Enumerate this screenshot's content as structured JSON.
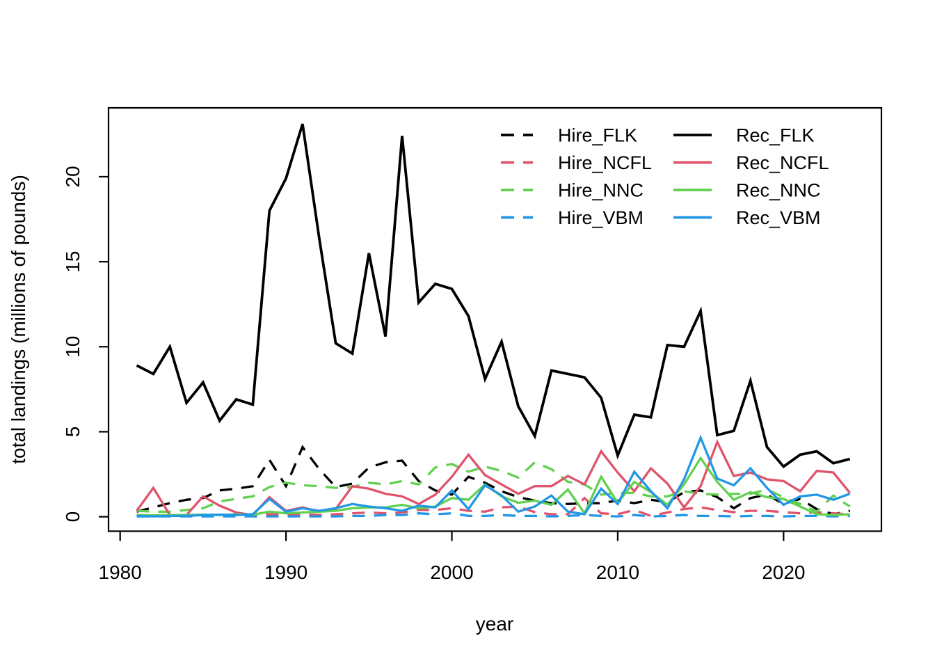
{
  "figure": {
    "background": "#ffffff",
    "frame_color": "#000000"
  },
  "chart_data": {
    "type": "line",
    "title": "",
    "xlabel": "year",
    "ylabel": "total landings (millions of pounds)",
    "x_ticks": [
      1980,
      1990,
      2000,
      2010,
      2020
    ],
    "y_ticks": [
      0,
      5,
      10,
      15,
      20
    ],
    "xlim": [
      1979.3,
      2025.9
    ],
    "ylim": [
      -0.85,
      24.05
    ],
    "grid": false,
    "legend_position": "top-right-inside",
    "x": [
      1981,
      1982,
      1983,
      1984,
      1985,
      1986,
      1987,
      1988,
      1989,
      1990,
      1991,
      1992,
      1993,
      1994,
      1995,
      1996,
      1997,
      1998,
      1999,
      2000,
      2001,
      2002,
      2003,
      2004,
      2005,
      2006,
      2007,
      2008,
      2009,
      2010,
      2011,
      2012,
      2013,
      2014,
      2015,
      2016,
      2017,
      2018,
      2019,
      2020,
      2021,
      2022,
      2023,
      2024
    ],
    "series": [
      {
        "name": "Hire_FLK",
        "color": "#000000",
        "dash": true,
        "values": [
          0.3,
          0.55,
          0.8,
          1.0,
          1.1,
          1.55,
          1.65,
          1.8,
          3.35,
          1.8,
          4.1,
          2.8,
          1.75,
          1.95,
          2.9,
          3.2,
          3.3,
          2.1,
          1.55,
          1.3,
          2.35,
          2.0,
          1.5,
          1.15,
          0.95,
          0.8,
          0.75,
          0.8,
          0.8,
          0.95,
          0.8,
          1.0,
          0.85,
          1.45,
          1.55,
          1.15,
          0.5,
          1.1,
          1.3,
          0.75,
          1.05,
          0.45,
          0.15,
          0.35
        ]
      },
      {
        "name": "Hire_NCFL",
        "color": "#DF536B",
        "dash": true,
        "values": [
          0.05,
          0.05,
          0.05,
          0.05,
          0.08,
          0.1,
          0.1,
          0.1,
          0.15,
          0.1,
          0.15,
          0.1,
          0.15,
          0.2,
          0.25,
          0.2,
          0.25,
          0.4,
          0.4,
          0.5,
          0.35,
          0.3,
          0.55,
          0.6,
          0.27,
          0.15,
          0.15,
          1.1,
          0.2,
          0.15,
          0.4,
          0.05,
          0.25,
          0.45,
          0.55,
          0.4,
          0.27,
          0.35,
          0.35,
          0.27,
          0.2,
          0.27,
          0.2,
          0.15
        ]
      },
      {
        "name": "Hire_NNC",
        "color": "#61D04F",
        "dash": true,
        "values": [
          0.35,
          0.3,
          0.3,
          0.4,
          0.5,
          0.9,
          1.05,
          1.2,
          1.75,
          2.0,
          1.85,
          1.8,
          1.7,
          1.75,
          2.0,
          1.9,
          2.1,
          1.9,
          2.9,
          3.1,
          2.65,
          2.95,
          2.7,
          2.3,
          3.2,
          2.8,
          2.05,
          1.9,
          1.3,
          1.4,
          1.4,
          1.2,
          1.2,
          1.5,
          1.35,
          1.3,
          1.35,
          1.35,
          1.6,
          1.15,
          0.75,
          0.3,
          1.25,
          0.6
        ]
      },
      {
        "name": "Hire_VBM",
        "color": "#2297E6",
        "dash": true,
        "values": [
          0.02,
          0.02,
          0.02,
          0.02,
          0.02,
          0.02,
          0.02,
          0.02,
          0.02,
          0.02,
          0.02,
          0.02,
          0.02,
          0.05,
          0.05,
          0.1,
          0.1,
          0.2,
          0.15,
          0.2,
          0.05,
          0.05,
          0.1,
          0.05,
          0.05,
          0.02,
          0.05,
          0.1,
          0.05,
          0.02,
          0.1,
          0.02,
          0.05,
          0.1,
          0.05,
          0.05,
          0.02,
          0.05,
          0.05,
          0.02,
          0.05,
          0.05,
          0.02,
          0.05
        ]
      },
      {
        "name": "Rec_FLK",
        "color": "#000000",
        "dash": false,
        "values": [
          8.9,
          8.4,
          10.0,
          6.7,
          7.9,
          5.65,
          6.9,
          6.6,
          18.0,
          19.9,
          23.1,
          16.4,
          10.2,
          9.6,
          15.5,
          10.6,
          22.4,
          12.6,
          13.7,
          13.4,
          11.8,
          8.1,
          10.3,
          6.5,
          4.75,
          8.6,
          8.4,
          8.2,
          7.0,
          3.6,
          6.0,
          5.85,
          10.1,
          10.0,
          12.1,
          4.8,
          5.05,
          8.0,
          4.1,
          2.95,
          3.65,
          3.85,
          3.15,
          3.4
        ]
      },
      {
        "name": "Rec_NCFL",
        "color": "#DF536B",
        "dash": false,
        "values": [
          0.35,
          1.7,
          0.1,
          0.1,
          1.2,
          0.65,
          0.25,
          0.1,
          1.15,
          0.35,
          0.55,
          0.3,
          0.45,
          1.8,
          1.65,
          1.35,
          1.2,
          0.75,
          1.3,
          2.35,
          3.65,
          2.45,
          1.9,
          1.35,
          1.8,
          1.8,
          2.4,
          1.9,
          3.85,
          2.6,
          1.5,
          2.85,
          1.95,
          0.55,
          1.8,
          4.4,
          2.4,
          2.6,
          2.2,
          2.1,
          1.5,
          2.7,
          2.6,
          1.4
        ]
      },
      {
        "name": "Rec_NNC",
        "color": "#61D04F",
        "dash": false,
        "values": [
          0.1,
          0.08,
          0.1,
          0.1,
          0.12,
          0.1,
          0.15,
          0.12,
          0.3,
          0.2,
          0.25,
          0.3,
          0.35,
          0.5,
          0.55,
          0.55,
          0.7,
          0.5,
          0.6,
          1.1,
          1.0,
          1.9,
          1.2,
          0.82,
          0.95,
          0.7,
          1.6,
          0.2,
          2.35,
          0.82,
          2.05,
          1.45,
          0.7,
          1.9,
          3.45,
          2.05,
          1.0,
          1.45,
          1.15,
          1.05,
          0.6,
          0.15,
          0.1,
          0.15
        ]
      },
      {
        "name": "Rec_VBM",
        "color": "#2297E6",
        "dash": false,
        "values": [
          0.05,
          0.02,
          0.05,
          0.05,
          0.1,
          0.12,
          0.1,
          0.15,
          1.05,
          0.3,
          0.5,
          0.35,
          0.5,
          0.75,
          0.6,
          0.5,
          0.35,
          0.65,
          0.55,
          1.55,
          0.45,
          1.85,
          1.25,
          0.3,
          0.6,
          1.25,
          0.3,
          0.15,
          1.65,
          0.75,
          2.65,
          1.5,
          0.5,
          2.2,
          4.65,
          2.25,
          1.85,
          2.85,
          1.7,
          0.7,
          1.2,
          1.3,
          1.0,
          1.35
        ]
      }
    ],
    "legend": {
      "columns": [
        [
          "Hire_FLK",
          "Hire_NCFL",
          "Hire_NNC",
          "Hire_VBM"
        ],
        [
          "Rec_FLK",
          "Rec_NCFL",
          "Rec_NNC",
          "Rec_VBM"
        ]
      ]
    }
  }
}
